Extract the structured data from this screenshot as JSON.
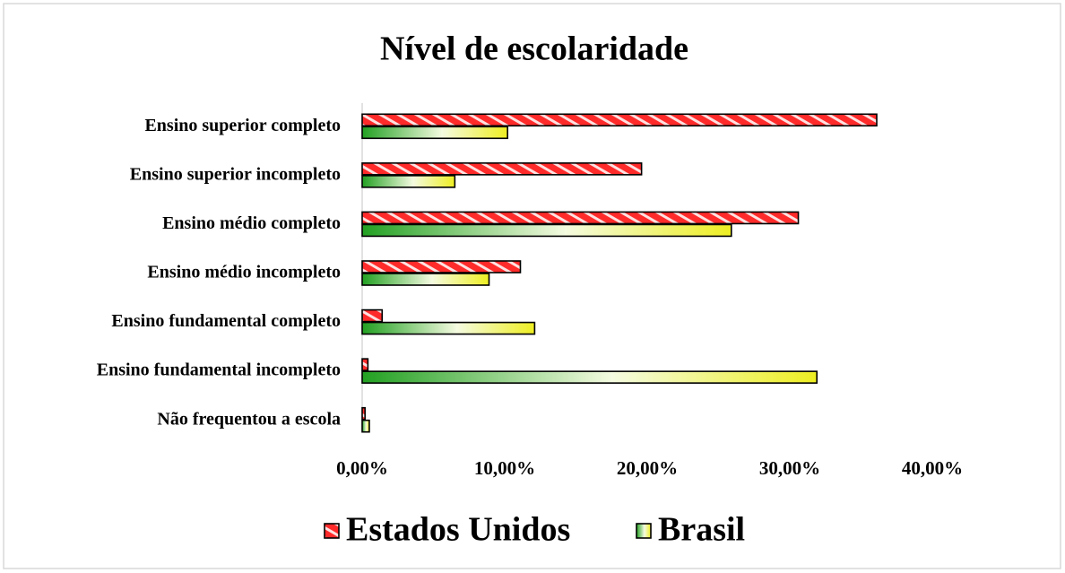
{
  "chart_data": {
    "type": "hbar",
    "title": "Nível de escolaridade",
    "categories": [
      "Ensino superior completo",
      "Ensino superior incompleto",
      "Ensino médio completo",
      "Ensino médio incompleto",
      "Ensino fundamental completo",
      "Ensino fundamental incompleto",
      "Não frequentou a escola"
    ],
    "series": [
      {
        "name": "Estados Unidos",
        "color": "#ff2b2b",
        "values": [
          36.1,
          19.6,
          30.6,
          11.1,
          1.4,
          0.4,
          0.2
        ]
      },
      {
        "name": "Brasil",
        "color": "#33aa33",
        "values": [
          10.2,
          6.5,
          25.9,
          8.9,
          12.1,
          31.9,
          0.5
        ]
      }
    ],
    "xlim": [
      0,
      40
    ],
    "xticks": [
      {
        "value": 0,
        "label": "0,00%"
      },
      {
        "value": 10,
        "label": "10,00%"
      },
      {
        "value": 20,
        "label": "20,00%"
      },
      {
        "value": 30,
        "label": "30,00%"
      },
      {
        "value": 40,
        "label": "40,00%"
      }
    ],
    "legend": "bottom"
  }
}
